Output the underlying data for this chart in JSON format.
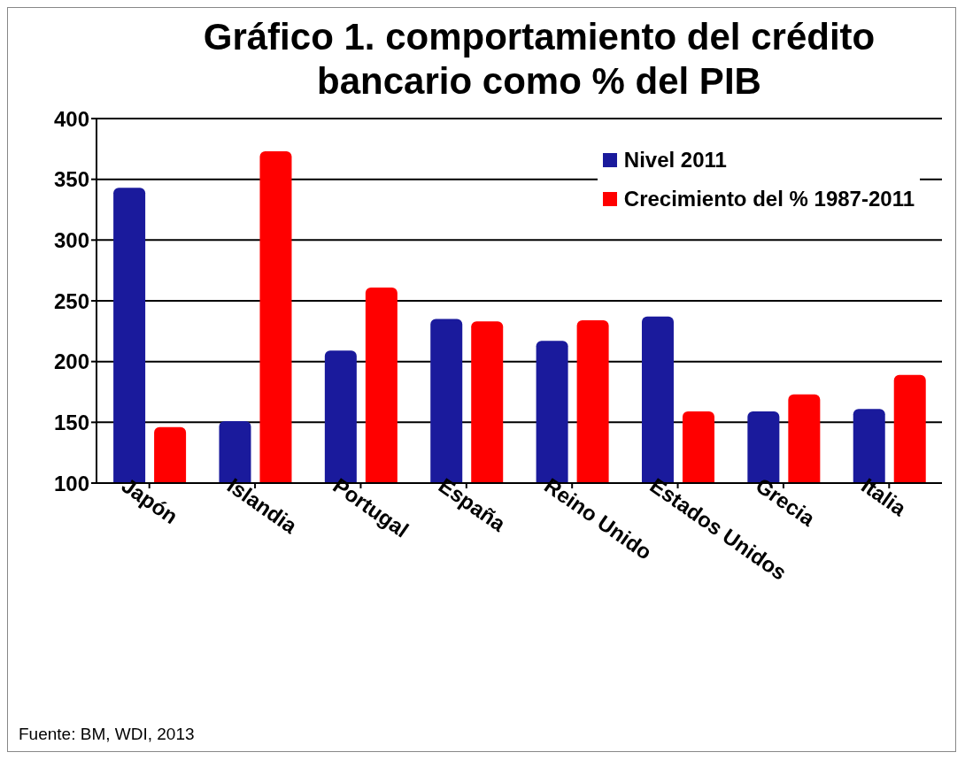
{
  "chart_data": {
    "type": "bar",
    "title": "Gráfico 1. comportamiento del crédito bancario como % del PIB",
    "categories": [
      "Japón",
      "Islandia",
      "Portugal",
      "España",
      "Reino Unido",
      "Estados Unidos",
      "Grecia",
      "Italia"
    ],
    "series": [
      {
        "name": "Nivel 2011",
        "color": "#1a1a9c",
        "values": [
          343,
          151,
          209,
          235,
          217,
          237,
          159,
          161
        ]
      },
      {
        "name": "Crecimiento del % 1987-2011",
        "color": "#ff0000",
        "values": [
          146,
          373,
          261,
          233,
          234,
          159,
          173,
          189
        ]
      }
    ],
    "ylim": [
      100,
      400
    ],
    "yticks": [
      100,
      150,
      200,
      250,
      300,
      350,
      400
    ],
    "grid": "y",
    "legend": "top right",
    "annotations": [
      "Fuente: BM, WDI, 2013"
    ]
  }
}
